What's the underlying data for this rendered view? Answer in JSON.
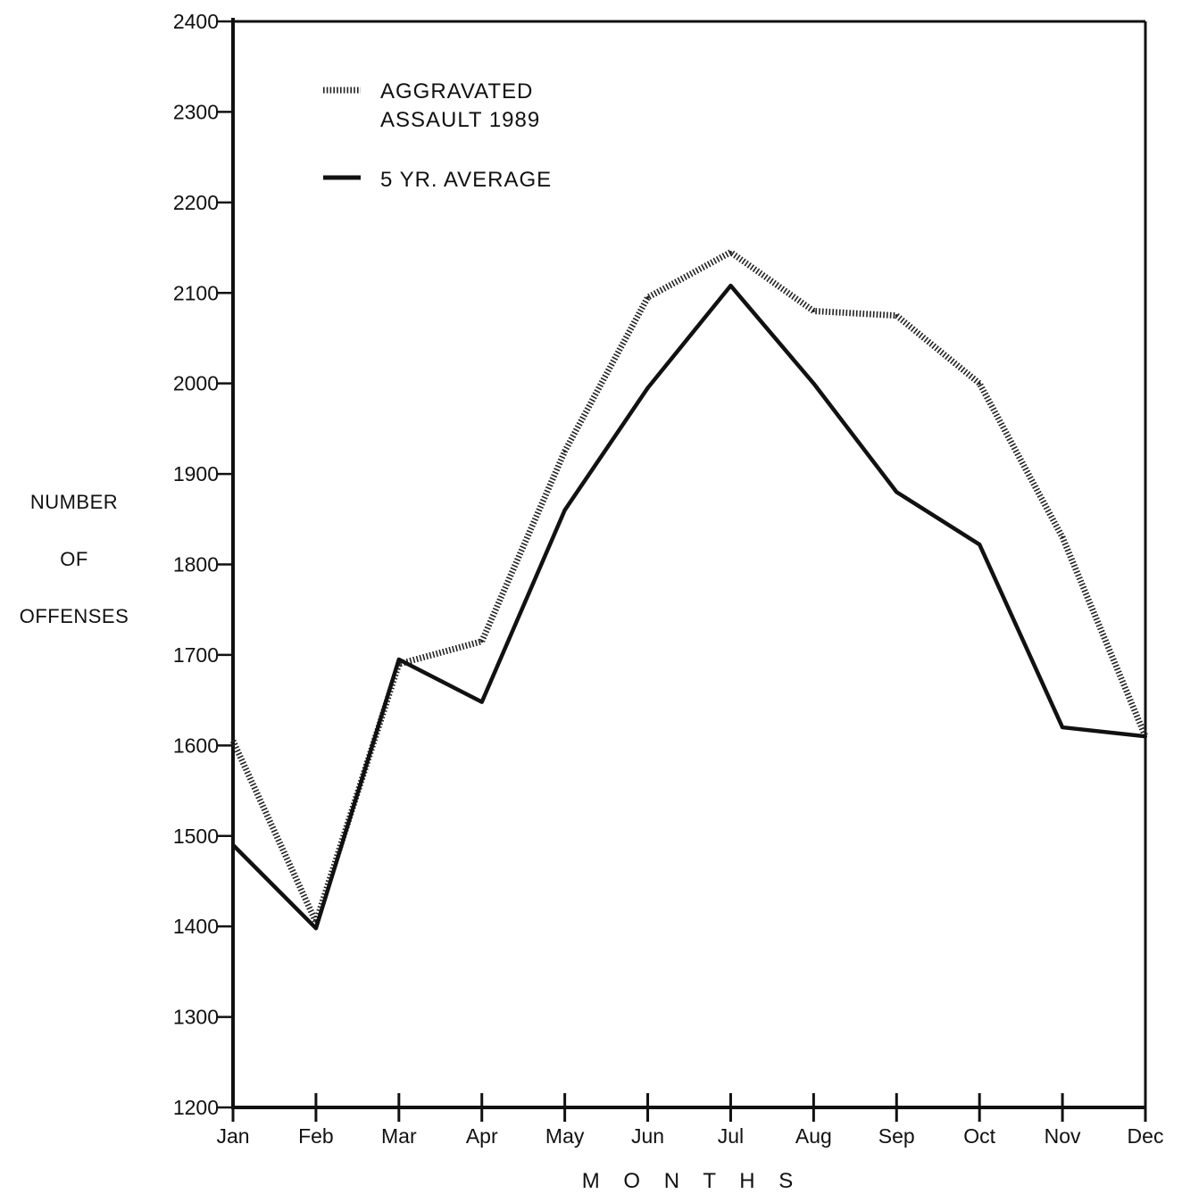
{
  "chart_data": {
    "type": "line",
    "title": "",
    "xlabel": "M O N T H S",
    "ylabel_lines": [
      "NUMBER",
      "OF",
      "OFFENSES"
    ],
    "categories": [
      "Jan",
      "Feb",
      "Mar",
      "Apr",
      "May",
      "Jun",
      "Jul",
      "Aug",
      "Sep",
      "Oct",
      "Nov",
      "Dec"
    ],
    "ylim": [
      1200,
      2400
    ],
    "yticks": [
      "1200",
      "1300",
      "1400",
      "1500",
      "1600",
      "1700",
      "1800",
      "1900",
      "2000",
      "2100",
      "2200",
      "2300",
      "2400"
    ],
    "grid": false,
    "legend_position": "top-left",
    "legend": [
      {
        "line1": "AGGRAVATED",
        "line2": "ASSAULT 1989",
        "style": "hatched"
      },
      {
        "line1": "5 YR. AVERAGE",
        "line2": "",
        "style": "solid"
      }
    ],
    "series": [
      {
        "name": "AGGRAVATED ASSAULT 1989",
        "style": "hatched",
        "color": "#222222",
        "values": [
          1605,
          1405,
          1690,
          1715,
          1925,
          2095,
          2145,
          2080,
          2075,
          2000,
          1830,
          1610
        ]
      },
      {
        "name": "5 YR. AVERAGE",
        "style": "solid",
        "color": "#111111",
        "values": [
          1490,
          1398,
          1695,
          1648,
          1860,
          1995,
          2108,
          2000,
          1880,
          1822,
          1620,
          1610
        ]
      }
    ]
  }
}
